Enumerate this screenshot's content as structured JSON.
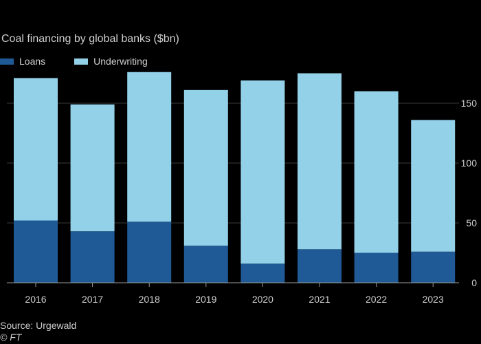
{
  "colors": {
    "loans": "#1f5a96",
    "underwriting": "#93d1e8",
    "axis": "#9a9a9a",
    "grid": "#3a3a3a",
    "text": "#cfcfcf"
  },
  "chart_data": {
    "type": "bar",
    "stacked": true,
    "title": "Coal financing by global banks ($bn)",
    "xlabel": "",
    "ylabel": "",
    "categories": [
      "2016",
      "2017",
      "2018",
      "2019",
      "2020",
      "2021",
      "2022",
      "2023"
    ],
    "series": [
      {
        "name": "Loans",
        "values": [
          52,
          43,
          51,
          31,
          16,
          28,
          25,
          26
        ]
      },
      {
        "name": "Underwriting",
        "values": [
          119,
          106,
          125,
          130,
          153,
          147,
          135,
          110
        ]
      }
    ],
    "ylim": [
      0,
      175
    ],
    "yticks": [
      0,
      50,
      100,
      150
    ],
    "y_axis_side": "right",
    "grid": true,
    "legend": "top-left"
  },
  "legend": {
    "loans_label": "Loans",
    "underwriting_label": "Underwriting"
  },
  "footer": {
    "source": "Source: Urgewald",
    "credit": "© FT"
  }
}
